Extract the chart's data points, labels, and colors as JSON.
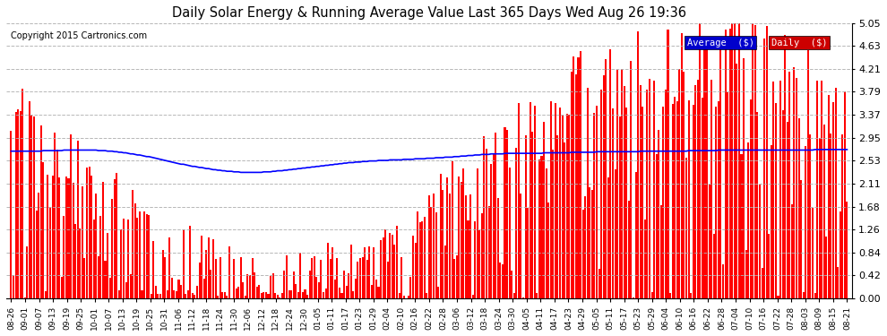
{
  "title": "Daily Solar Energy & Running Average Value Last 365 Days Wed Aug 26 19:36",
  "copyright": "Copyright 2015 Cartronics.com",
  "bar_color": "#ff0000",
  "avg_line_color": "#0000ff",
  "background_color": "#ffffff",
  "grid_color": "#b0b0b0",
  "ylim": [
    0.0,
    5.05
  ],
  "yticks": [
    0.0,
    0.42,
    0.84,
    1.26,
    1.68,
    2.11,
    2.53,
    2.95,
    3.37,
    3.79,
    4.21,
    4.63,
    5.05
  ],
  "legend_avg_label": "Average  ($)",
  "legend_daily_label": "Daily  ($)",
  "xtick_labels": [
    "08-26",
    "09-01",
    "09-07",
    "09-13",
    "09-19",
    "09-25",
    "10-01",
    "10-07",
    "10-13",
    "10-19",
    "10-25",
    "10-31",
    "11-06",
    "11-12",
    "11-18",
    "11-24",
    "11-30",
    "12-06",
    "12-12",
    "12-18",
    "12-24",
    "12-30",
    "01-05",
    "01-11",
    "01-17",
    "01-23",
    "01-29",
    "02-04",
    "02-10",
    "02-16",
    "02-22",
    "02-28",
    "03-06",
    "03-12",
    "03-18",
    "03-24",
    "03-30",
    "04-05",
    "04-11",
    "04-17",
    "04-23",
    "04-29",
    "05-05",
    "05-11",
    "05-17",
    "05-23",
    "05-29",
    "06-04",
    "06-10",
    "06-16",
    "06-22",
    "06-28",
    "07-04",
    "07-10",
    "07-16",
    "07-22",
    "07-28",
    "08-03",
    "08-09",
    "08-15",
    "08-21"
  ],
  "n_days": 365,
  "avg_line_points": [
    2.7,
    2.7,
    2.7,
    2.7,
    2.7,
    2.7,
    2.7,
    2.7,
    2.7,
    2.7,
    2.7,
    2.7,
    2.7,
    2.7,
    2.71,
    2.71,
    2.71,
    2.71,
    2.71,
    2.71,
    2.71,
    2.71,
    2.71,
    2.72,
    2.72,
    2.72,
    2.72,
    2.72,
    2.72,
    2.72,
    2.72,
    2.72,
    2.72,
    2.72,
    2.72,
    2.72,
    2.72,
    2.72,
    2.71,
    2.71,
    2.71,
    2.71,
    2.7,
    2.7,
    2.7,
    2.69,
    2.69,
    2.68,
    2.68,
    2.67,
    2.67,
    2.66,
    2.65,
    2.65,
    2.64,
    2.63,
    2.63,
    2.62,
    2.61,
    2.6,
    2.6,
    2.59,
    2.58,
    2.57,
    2.56,
    2.55,
    2.54,
    2.53,
    2.52,
    2.51,
    2.5,
    2.49,
    2.48,
    2.47,
    2.46,
    2.46,
    2.45,
    2.44,
    2.43,
    2.42,
    2.42,
    2.41,
    2.4,
    2.4,
    2.39,
    2.38,
    2.38,
    2.37,
    2.36,
    2.36,
    2.35,
    2.35,
    2.34,
    2.34,
    2.33,
    2.33,
    2.33,
    2.32,
    2.32,
    2.32,
    2.31,
    2.31,
    2.31,
    2.31,
    2.31,
    2.31,
    2.31,
    2.31,
    2.31,
    2.31,
    2.32,
    2.32,
    2.32,
    2.32,
    2.33,
    2.33,
    2.34,
    2.34,
    2.34,
    2.35,
    2.35,
    2.36,
    2.36,
    2.37,
    2.37,
    2.38,
    2.38,
    2.39,
    2.39,
    2.4,
    2.4,
    2.41,
    2.41,
    2.42,
    2.42,
    2.43,
    2.43,
    2.44,
    2.44,
    2.45,
    2.45,
    2.46,
    2.46,
    2.47,
    2.47,
    2.48,
    2.48,
    2.49,
    2.49,
    2.49,
    2.5,
    2.5,
    2.5,
    2.51,
    2.51,
    2.51,
    2.52,
    2.52,
    2.52,
    2.52,
    2.53,
    2.53,
    2.53,
    2.53,
    2.53,
    2.54,
    2.54,
    2.54,
    2.54,
    2.54,
    2.54,
    2.55,
    2.55,
    2.55,
    2.55,
    2.55,
    2.56,
    2.56,
    2.56,
    2.56,
    2.56,
    2.57,
    2.57,
    2.57,
    2.57,
    2.58,
    2.58,
    2.58,
    2.58,
    2.59,
    2.59,
    2.59,
    2.59,
    2.6,
    2.6,
    2.6,
    2.61,
    2.61,
    2.61,
    2.62,
    2.62,
    2.62,
    2.63,
    2.63,
    2.63,
    2.64,
    2.64,
    2.64,
    2.64,
    2.65,
    2.65,
    2.65,
    2.65,
    2.65,
    2.65,
    2.66,
    2.66,
    2.66,
    2.66,
    2.66,
    2.66,
    2.66,
    2.66,
    2.66,
    2.66,
    2.66,
    2.66,
    2.66,
    2.66,
    2.66,
    2.66,
    2.66,
    2.67,
    2.67,
    2.67,
    2.67,
    2.67,
    2.67,
    2.67,
    2.67,
    2.67,
    2.67,
    2.67,
    2.67,
    2.68,
    2.68,
    2.68,
    2.68,
    2.68,
    2.68,
    2.68,
    2.68,
    2.68,
    2.68,
    2.68,
    2.69,
    2.69,
    2.69,
    2.69,
    2.69,
    2.69,
    2.69,
    2.69,
    2.69,
    2.69,
    2.69,
    2.69,
    2.69,
    2.69,
    2.69,
    2.69,
    2.69,
    2.69,
    2.69,
    2.7,
    2.7,
    2.7,
    2.7,
    2.7,
    2.7,
    2.7,
    2.7,
    2.7,
    2.7,
    2.7,
    2.7,
    2.7,
    2.7,
    2.7,
    2.7,
    2.7,
    2.7,
    2.7,
    2.7,
    2.7,
    2.71,
    2.71,
    2.71,
    2.71,
    2.71,
    2.71,
    2.71,
    2.71,
    2.71,
    2.71,
    2.71,
    2.71,
    2.71,
    2.72,
    2.72,
    2.72,
    2.72,
    2.72,
    2.72,
    2.72,
    2.72,
    2.72,
    2.72,
    2.72,
    2.72,
    2.72,
    2.72,
    2.72,
    2.72,
    2.72,
    2.72,
    2.72,
    2.72,
    2.72,
    2.72,
    2.72,
    2.72,
    2.72,
    2.72,
    2.72,
    2.72,
    2.72,
    2.72,
    2.72,
    2.72,
    2.72,
    2.72,
    2.72,
    2.72,
    2.72,
    2.72,
    2.72,
    2.72,
    2.72,
    2.72,
    2.73,
    2.73,
    2.73,
    2.73,
    2.73,
    2.73,
    2.73,
    2.73,
    2.73,
    2.73,
    2.73,
    2.73,
    2.73,
    2.73,
    2.73
  ]
}
